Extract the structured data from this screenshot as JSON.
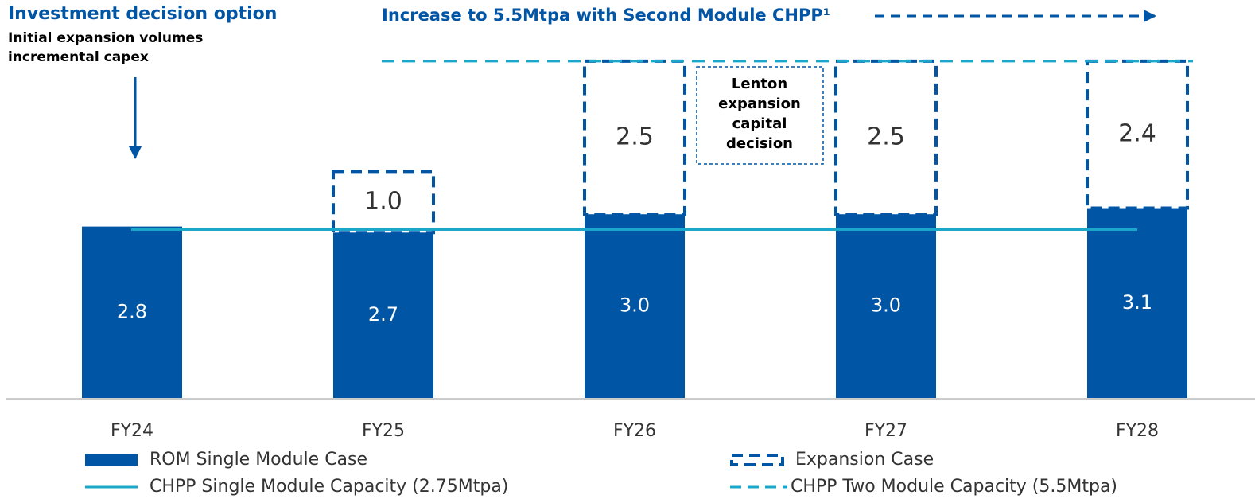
{
  "chart_data": {
    "type": "bar",
    "stacked": true,
    "categories": [
      "FY24",
      "FY25",
      "FY26",
      "FY27",
      "FY28"
    ],
    "series": [
      {
        "name": "ROM Single Module Case",
        "color": "#0055a5",
        "style": "solid",
        "values": [
          2.8,
          2.7,
          3.0,
          3.0,
          3.1
        ],
        "value_labels": [
          "2.8",
          "2.7",
          "3.0",
          "3.0",
          "3.1"
        ]
      },
      {
        "name": "Expansion Case",
        "color": "#0055a5",
        "style": "dashed",
        "values": [
          null,
          1.0,
          2.5,
          2.5,
          2.4
        ],
        "value_labels": [
          null,
          "1.0",
          "2.5",
          "2.5",
          "2.4"
        ]
      }
    ],
    "lines": [
      {
        "name": "CHPP Single Module Capacity (2.75Mtpa)",
        "value": 2.75,
        "color": "#1aa7c9",
        "style": "solid"
      },
      {
        "name": "CHPP Two Module Capacity (5.5Mtpa)",
        "value": 5.5,
        "color": "#1aa7c9",
        "style": "dashed"
      }
    ],
    "ylim": [
      0,
      6.5
    ],
    "annotations": {
      "decision_title": "Investment decision option",
      "decision_text": [
        "Initial expansion volumes",
        "incremental capex"
      ],
      "increase_text": "Increase to 5.5Mtpa with Second Module CHPP¹",
      "lenton_text": [
        "Lenton",
        "expansion",
        "capital",
        "decision"
      ]
    }
  }
}
